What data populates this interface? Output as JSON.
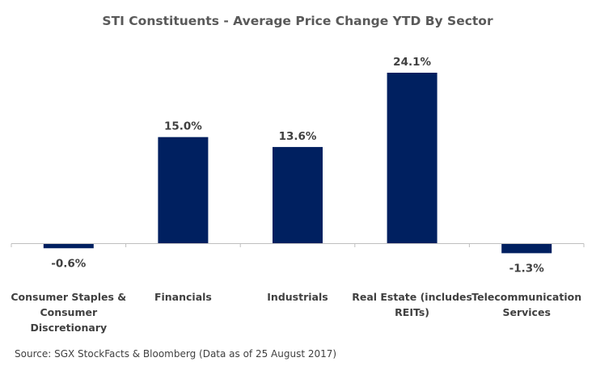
{
  "chart_data": {
    "type": "bar",
    "title": "STI Constituents - Average Price Change YTD By Sector",
    "categories": [
      "Consumer Staples & Consumer Discretionary",
      "Financials",
      "Industrials",
      "Real Estate (includes REITs)",
      "Telecommunication Services"
    ],
    "category_lines": [
      [
        "Consumer Staples &",
        "Consumer",
        "Discretionary"
      ],
      [
        "Financials"
      ],
      [
        "Industrials"
      ],
      [
        "Real Estate (includes",
        "REITs)"
      ],
      [
        "Telecommunication",
        "Services"
      ]
    ],
    "values": [
      -0.6,
      15.0,
      13.6,
      24.1,
      -1.3
    ],
    "value_labels": [
      "-0.6%",
      "15.0%",
      "13.6%",
      "24.1%",
      "-1.3%"
    ],
    "unit": "%",
    "xlabel": "",
    "ylabel": "",
    "ylim": [
      -2,
      26
    ],
    "grid": false,
    "legend": false,
    "bar_color": "#002060",
    "source": "Source: SGX StockFacts & Bloomberg (Data as of 25 August 2017)"
  }
}
